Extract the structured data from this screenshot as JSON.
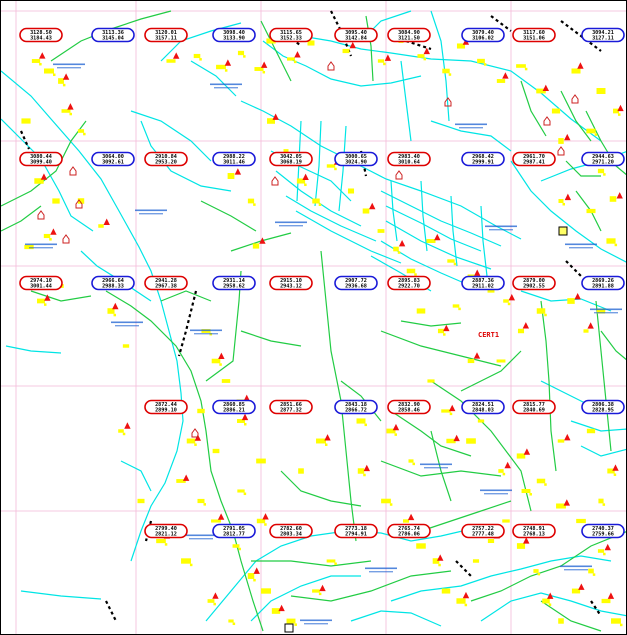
{
  "map": {
    "title": "",
    "colors": {
      "background": "#ffffff",
      "grid": "#f3b9d8",
      "pipe_cyan": "#00e5e5",
      "pipe_green": "#22cc44",
      "marker_yellow": "#ffff00",
      "flow_red": "#ee1111",
      "ellipse_red": "#dd0000",
      "ellipse_blue": "#1a1ad8",
      "house": "#cc2222",
      "text_blue": "#1a5fd0"
    },
    "node_label": "CERT1",
    "sheets": [
      {
        "row": 0,
        "col": 0,
        "color": "red",
        "top": "3128.50",
        "bottom": "3184.43"
      },
      {
        "row": 0,
        "col": 1,
        "color": "blue",
        "top": "3113.36",
        "bottom": "3145.04"
      },
      {
        "row": 0,
        "col": 2,
        "color": "red",
        "top": "3120.01",
        "bottom": "3157.11"
      },
      {
        "row": 0,
        "col": 3,
        "color": "blue",
        "top": "3098.40",
        "bottom": "3133.90"
      },
      {
        "row": 0,
        "col": 4,
        "color": "red",
        "top": "3115.65",
        "bottom": "3152.33"
      },
      {
        "row": 0,
        "col": 5,
        "color": "red",
        "top": "3095.40",
        "bottom": "3142.84"
      },
      {
        "row": 0,
        "col": 6,
        "color": "red",
        "top": "3084.90",
        "bottom": "3121.50"
      },
      {
        "row": 0,
        "col": 7,
        "color": "blue",
        "top": "3079.40",
        "bottom": "3106.02"
      },
      {
        "row": 0,
        "col": 8,
        "color": "red",
        "top": "3117.60",
        "bottom": "3151.06"
      },
      {
        "row": 0,
        "col": 9,
        "color": "blue",
        "top": "3094.21",
        "bottom": "3127.11"
      },
      {
        "row": 1,
        "col": 0,
        "color": "red",
        "top": "3080.44",
        "bottom": "3099.40"
      },
      {
        "row": 1,
        "col": 1,
        "color": "blue",
        "top": "3064.00",
        "bottom": "3092.61"
      },
      {
        "row": 1,
        "col": 2,
        "color": "red",
        "top": "2910.84",
        "bottom": "2953.20"
      },
      {
        "row": 1,
        "col": 3,
        "color": "blue",
        "top": "2988.22",
        "bottom": "3011.46"
      },
      {
        "row": 1,
        "col": 4,
        "color": "red",
        "top": "3042.05",
        "bottom": "3068.19"
      },
      {
        "row": 1,
        "col": 5,
        "color": "blue",
        "top": "3000.65",
        "bottom": "3024.90"
      },
      {
        "row": 1,
        "col": 6,
        "color": "red",
        "top": "2983.40",
        "bottom": "3010.64"
      },
      {
        "row": 1,
        "col": 7,
        "color": "blue",
        "top": "2968.42",
        "bottom": "2999.91"
      },
      {
        "row": 1,
        "col": 8,
        "color": "red",
        "top": "2961.70",
        "bottom": "2987.41"
      },
      {
        "row": 1,
        "col": 9,
        "color": "blue",
        "top": "2944.63",
        "bottom": "2971.20"
      },
      {
        "row": 2,
        "col": 0,
        "color": "red",
        "top": "2974.10",
        "bottom": "3001.44"
      },
      {
        "row": 2,
        "col": 1,
        "color": "blue",
        "top": "2966.64",
        "bottom": "2988.33"
      },
      {
        "row": 2,
        "col": 2,
        "color": "red",
        "top": "2941.28",
        "bottom": "2967.38"
      },
      {
        "row": 2,
        "col": 3,
        "color": "blue",
        "top": "2931.14",
        "bottom": "2958.62"
      },
      {
        "row": 2,
        "col": 4,
        "color": "red",
        "top": "2915.10",
        "bottom": "2943.12"
      },
      {
        "row": 2,
        "col": 5,
        "color": "blue",
        "top": "2907.72",
        "bottom": "2936.68"
      },
      {
        "row": 2,
        "col": 6,
        "color": "red",
        "top": "2895.83",
        "bottom": "2922.70"
      },
      {
        "row": 2,
        "col": 7,
        "color": "blue",
        "top": "2887.36",
        "bottom": "2911.02"
      },
      {
        "row": 2,
        "col": 8,
        "color": "red",
        "top": "2879.00",
        "bottom": "2902.55"
      },
      {
        "row": 2,
        "col": 9,
        "color": "blue",
        "top": "2869.26",
        "bottom": "2891.88"
      },
      {
        "row": 3,
        "col": 2,
        "color": "red",
        "top": "2872.44",
        "bottom": "2899.10"
      },
      {
        "row": 3,
        "col": 3,
        "color": "blue",
        "top": "2860.85",
        "bottom": "2886.21"
      },
      {
        "row": 3,
        "col": 4,
        "color": "red",
        "top": "2851.66",
        "bottom": "2877.32"
      },
      {
        "row": 3,
        "col": 5,
        "color": "blue",
        "top": "2843.18",
        "bottom": "2866.72"
      },
      {
        "row": 3,
        "col": 6,
        "color": "red",
        "top": "2832.90",
        "bottom": "2858.46"
      },
      {
        "row": 3,
        "col": 7,
        "color": "blue",
        "top": "2824.51",
        "bottom": "2848.03"
      },
      {
        "row": 3,
        "col": 8,
        "color": "red",
        "top": "2815.77",
        "bottom": "2840.69"
      },
      {
        "row": 3,
        "col": 9,
        "color": "blue",
        "top": "2806.38",
        "bottom": "2828.95"
      },
      {
        "row": 4,
        "col": 2,
        "color": "red",
        "top": "2799.40",
        "bottom": "2821.12"
      },
      {
        "row": 4,
        "col": 3,
        "color": "blue",
        "top": "2791.05",
        "bottom": "2812.77"
      },
      {
        "row": 4,
        "col": 4,
        "color": "red",
        "top": "2782.60",
        "bottom": "2803.34"
      },
      {
        "row": 4,
        "col": 5,
        "color": "red",
        "top": "2773.18",
        "bottom": "2794.91"
      },
      {
        "row": 4,
        "col": 6,
        "color": "red",
        "top": "2765.74",
        "bottom": "2786.06"
      },
      {
        "row": 4,
        "col": 7,
        "color": "red",
        "top": "2757.22",
        "bottom": "2777.48"
      },
      {
        "row": 4,
        "col": 8,
        "color": "red",
        "top": "2748.91",
        "bottom": "2768.13"
      },
      {
        "row": 4,
        "col": 9,
        "color": "blue",
        "top": "2740.37",
        "bottom": "2759.66"
      }
    ]
  }
}
